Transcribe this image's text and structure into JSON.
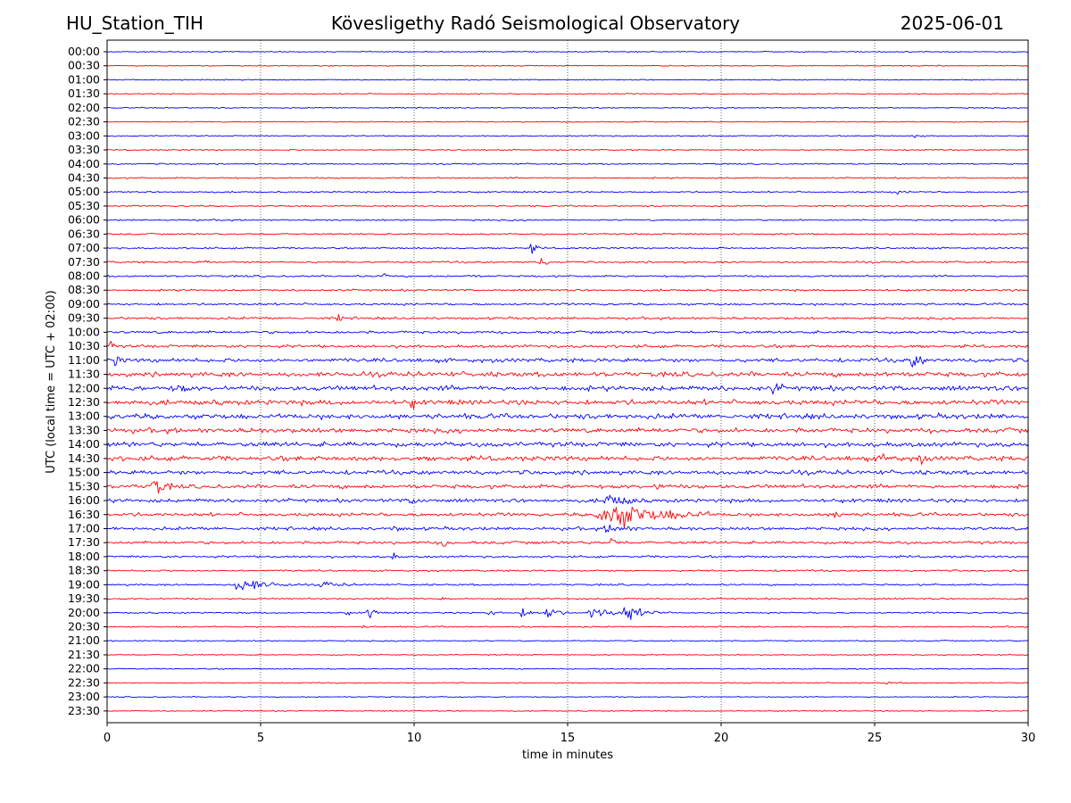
{
  "header": {
    "station": "HU_Station_TIH",
    "observatory": "Kövesligethy Radó Seismological Observatory",
    "date": "2025-06-01"
  },
  "chart_data": {
    "type": "line",
    "title": "Kövesligethy Radó Seismological Observatory",
    "xlabel": "time in minutes",
    "ylabel": "UTC (local time = UTC + 02:00)",
    "xlim": [
      0,
      30
    ],
    "x_ticks": [
      0,
      5,
      10,
      15,
      20,
      25,
      30
    ],
    "grid": "vertical-dotted",
    "colors": [
      "#0000ff",
      "#ff0000"
    ],
    "rows": [
      "00:00",
      "00:30",
      "01:00",
      "01:30",
      "02:00",
      "02:30",
      "03:00",
      "03:30",
      "04:00",
      "04:30",
      "05:00",
      "05:30",
      "06:00",
      "06:30",
      "07:00",
      "07:30",
      "08:00",
      "08:30",
      "09:00",
      "09:30",
      "10:00",
      "10:30",
      "11:00",
      "11:30",
      "12:00",
      "12:30",
      "13:00",
      "13:30",
      "14:00",
      "14:30",
      "15:00",
      "15:30",
      "16:00",
      "16:30",
      "17:00",
      "17:30",
      "18:00",
      "18:30",
      "19:00",
      "19:30",
      "20:00",
      "20:30",
      "21:00",
      "21:30",
      "22:00",
      "22:30",
      "23:00",
      "23:30"
    ],
    "noise_level": [
      0.8,
      0.8,
      0.8,
      0.7,
      0.8,
      0.8,
      0.9,
      0.9,
      1.0,
      1.1,
      1.1,
      1.1,
      1.2,
      1.2,
      1.3,
      1.4,
      1.4,
      1.5,
      1.6,
      1.8,
      2.0,
      2.2,
      3.0,
      3.6,
      3.8,
      3.8,
      3.8,
      3.6,
      3.6,
      3.6,
      3.2,
      3.0,
      2.8,
      2.6,
      2.4,
      2.2,
      1.6,
      1.3,
      1.3,
      1.2,
      1.1,
      1.0,
      0.9,
      0.8,
      0.8,
      0.8,
      0.8,
      0.8
    ],
    "events": [
      {
        "row": "03:00",
        "minute": 26.3,
        "amplitude": 3,
        "duration": 0.5
      },
      {
        "row": "05:00",
        "minute": 25.6,
        "amplitude": 3,
        "duration": 0.6
      },
      {
        "row": "07:00",
        "minute": 13.8,
        "amplitude": 9,
        "duration": 0.3
      },
      {
        "row": "07:30",
        "minute": 14.1,
        "amplitude": 9,
        "duration": 0.3
      },
      {
        "row": "07:30",
        "minute": 3.1,
        "amplitude": 4,
        "duration": 0.3
      },
      {
        "row": "08:00",
        "minute": 9.0,
        "amplitude": 9,
        "duration": 0.2
      },
      {
        "row": "08:00",
        "minute": 11.7,
        "amplitude": 3,
        "duration": 0.4
      },
      {
        "row": "09:30",
        "minute": 7.5,
        "amplitude": 6,
        "duration": 0.3
      },
      {
        "row": "10:30",
        "minute": 0.1,
        "amplitude": 6,
        "duration": 0.3
      },
      {
        "row": "11:00",
        "minute": 0.2,
        "amplitude": 10,
        "duration": 0.4
      },
      {
        "row": "11:00",
        "minute": 26.2,
        "amplitude": 14,
        "duration": 0.5
      },
      {
        "row": "11:30",
        "minute": 25.3,
        "amplitude": 8,
        "duration": 0.3
      },
      {
        "row": "12:00",
        "minute": 2.3,
        "amplitude": 12,
        "duration": 0.3
      },
      {
        "row": "12:00",
        "minute": 21.7,
        "amplitude": 12,
        "duration": 0.3
      },
      {
        "row": "12:30",
        "minute": 9.9,
        "amplitude": 8,
        "duration": 0.3
      },
      {
        "row": "14:30",
        "minute": 25.3,
        "amplitude": 10,
        "duration": 0.4
      },
      {
        "row": "14:30",
        "minute": 26.4,
        "amplitude": 10,
        "duration": 0.3
      },
      {
        "row": "15:30",
        "minute": 1.5,
        "amplitude": 14,
        "duration": 0.6
      },
      {
        "row": "15:30",
        "minute": 17.9,
        "amplitude": 8,
        "duration": 0.3
      },
      {
        "row": "16:00",
        "minute": 9.9,
        "amplitude": 9,
        "duration": 0.5
      },
      {
        "row": "16:00",
        "minute": 16.3,
        "amplitude": 14,
        "duration": 1.0
      },
      {
        "row": "16:30",
        "minute": 16.3,
        "amplitude": 22,
        "duration": 3.0
      },
      {
        "row": "16:30",
        "minute": 23.7,
        "amplitude": 8,
        "duration": 0.3
      },
      {
        "row": "17:00",
        "minute": 9.3,
        "amplitude": 5,
        "duration": 0.3
      },
      {
        "row": "17:00",
        "minute": 16.3,
        "amplitude": 7,
        "duration": 1.0
      },
      {
        "row": "17:30",
        "minute": 10.9,
        "amplitude": 12,
        "duration": 0.3
      },
      {
        "row": "17:30",
        "minute": 16.4,
        "amplitude": 10,
        "duration": 0.3
      },
      {
        "row": "18:00",
        "minute": 9.3,
        "amplitude": 8,
        "duration": 0.2
      },
      {
        "row": "19:00",
        "minute": 4.3,
        "amplitude": 12,
        "duration": 1.6
      },
      {
        "row": "19:00",
        "minute": 7.0,
        "amplitude": 5,
        "duration": 1.0
      },
      {
        "row": "19:30",
        "minute": 10.9,
        "amplitude": 4,
        "duration": 0.3
      },
      {
        "row": "20:00",
        "minute": 7.7,
        "amplitude": 6,
        "duration": 0.3
      },
      {
        "row": "20:00",
        "minute": 8.5,
        "amplitude": 14,
        "duration": 0.4
      },
      {
        "row": "20:00",
        "minute": 12.4,
        "amplitude": 5,
        "duration": 0.5
      },
      {
        "row": "20:00",
        "minute": 13.5,
        "amplitude": 8,
        "duration": 0.6
      },
      {
        "row": "20:00",
        "minute": 14.3,
        "amplitude": 14,
        "duration": 0.6
      },
      {
        "row": "20:00",
        "minute": 15.8,
        "amplitude": 10,
        "duration": 1.4
      },
      {
        "row": "20:00",
        "minute": 16.9,
        "amplitude": 14,
        "duration": 0.8
      },
      {
        "row": "20:00",
        "minute": 17.8,
        "amplitude": 8,
        "duration": 0.3
      },
      {
        "row": "20:30",
        "minute": 8.3,
        "amplitude": 4,
        "duration": 0.2
      },
      {
        "row": "22:00",
        "minute": 16.2,
        "amplitude": 3,
        "duration": 0.2
      },
      {
        "row": "22:30",
        "minute": 25.4,
        "amplitude": 2,
        "duration": 0.6
      }
    ]
  }
}
